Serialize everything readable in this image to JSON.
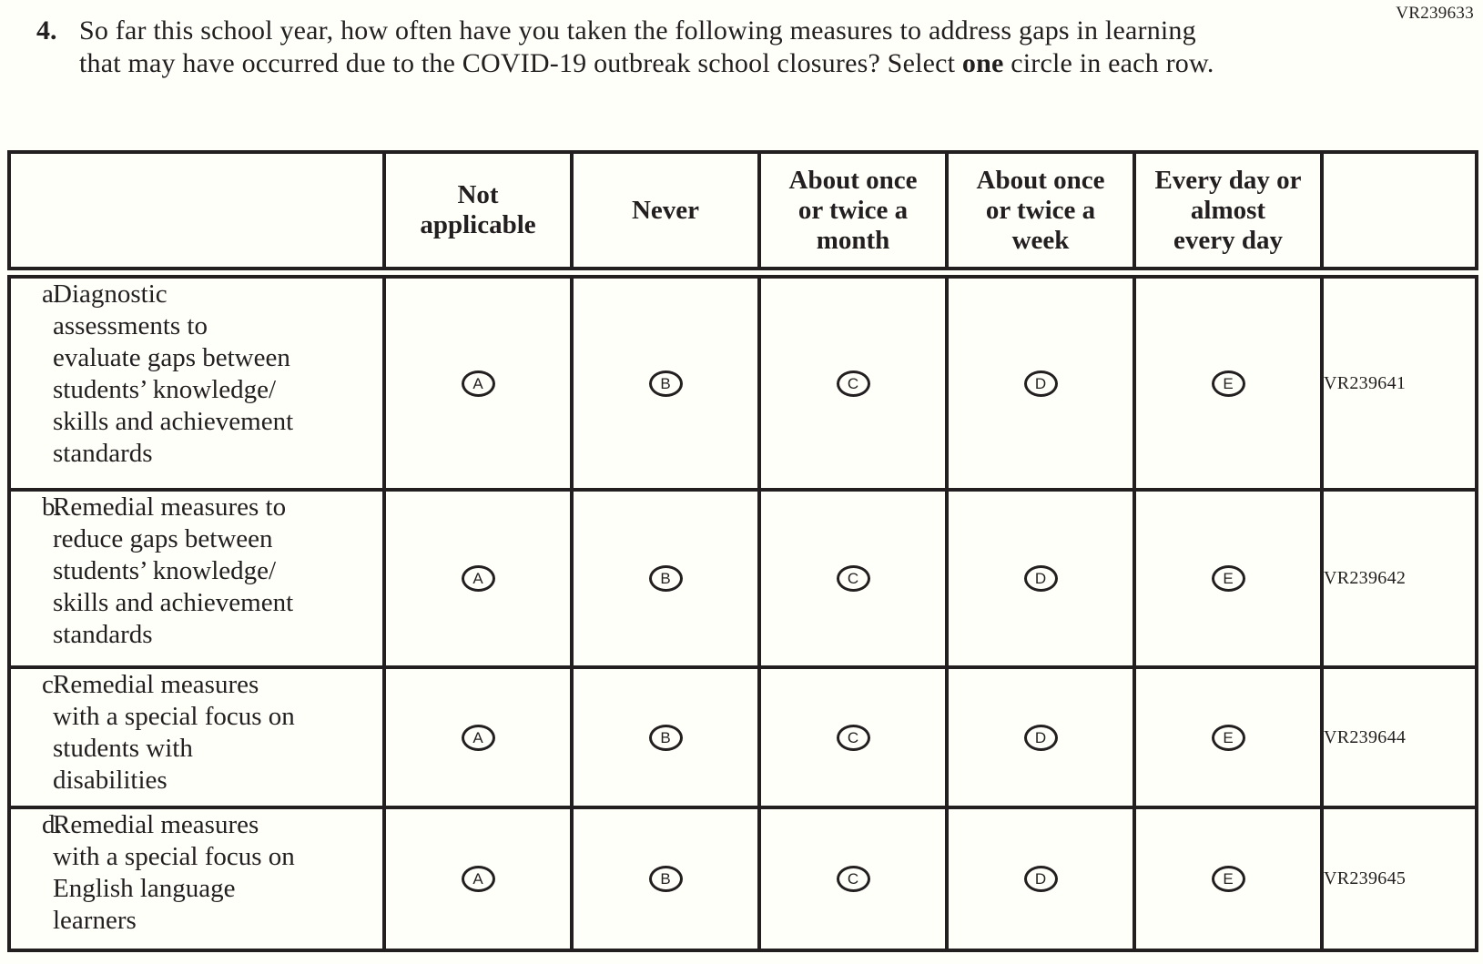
{
  "page": {
    "form_code": "VR239633"
  },
  "question": {
    "number": "4.",
    "text_before_bold": "So far this school year, how often have you taken the following measures to address gaps in learning that may have occurred due to the COVID-19 outbreak school closures? Select ",
    "bold_word": "one",
    "text_after_bold": " circle in each row."
  },
  "table": {
    "columns": [
      "Not\napplicable",
      "Never",
      "About once\nor twice a\nmonth",
      "About once\nor twice a\nweek",
      "Every day or\nalmost\nevery day"
    ],
    "options": [
      "A",
      "B",
      "C",
      "D",
      "E"
    ],
    "rows": [
      {
        "item_letter": "a.",
        "label": "Diagnostic\nassessments to\nevaluate gaps between\nstudents’ knowledge/\nskills and achievement\nstandards",
        "code": "VR239641"
      },
      {
        "item_letter": "b.",
        "label": "Remedial measures to\nreduce gaps between\nstudents’ knowledge/\nskills and achievement\nstandards",
        "code": "VR239642"
      },
      {
        "item_letter": "c.",
        "label": "Remedial measures\nwith a special focus on\nstudents with\ndisabilities",
        "code": "VR239644"
      },
      {
        "item_letter": "d.",
        "label": "Remedial measures\nwith a special focus on\nEnglish language\nlearners",
        "code": "VR239645"
      }
    ]
  }
}
